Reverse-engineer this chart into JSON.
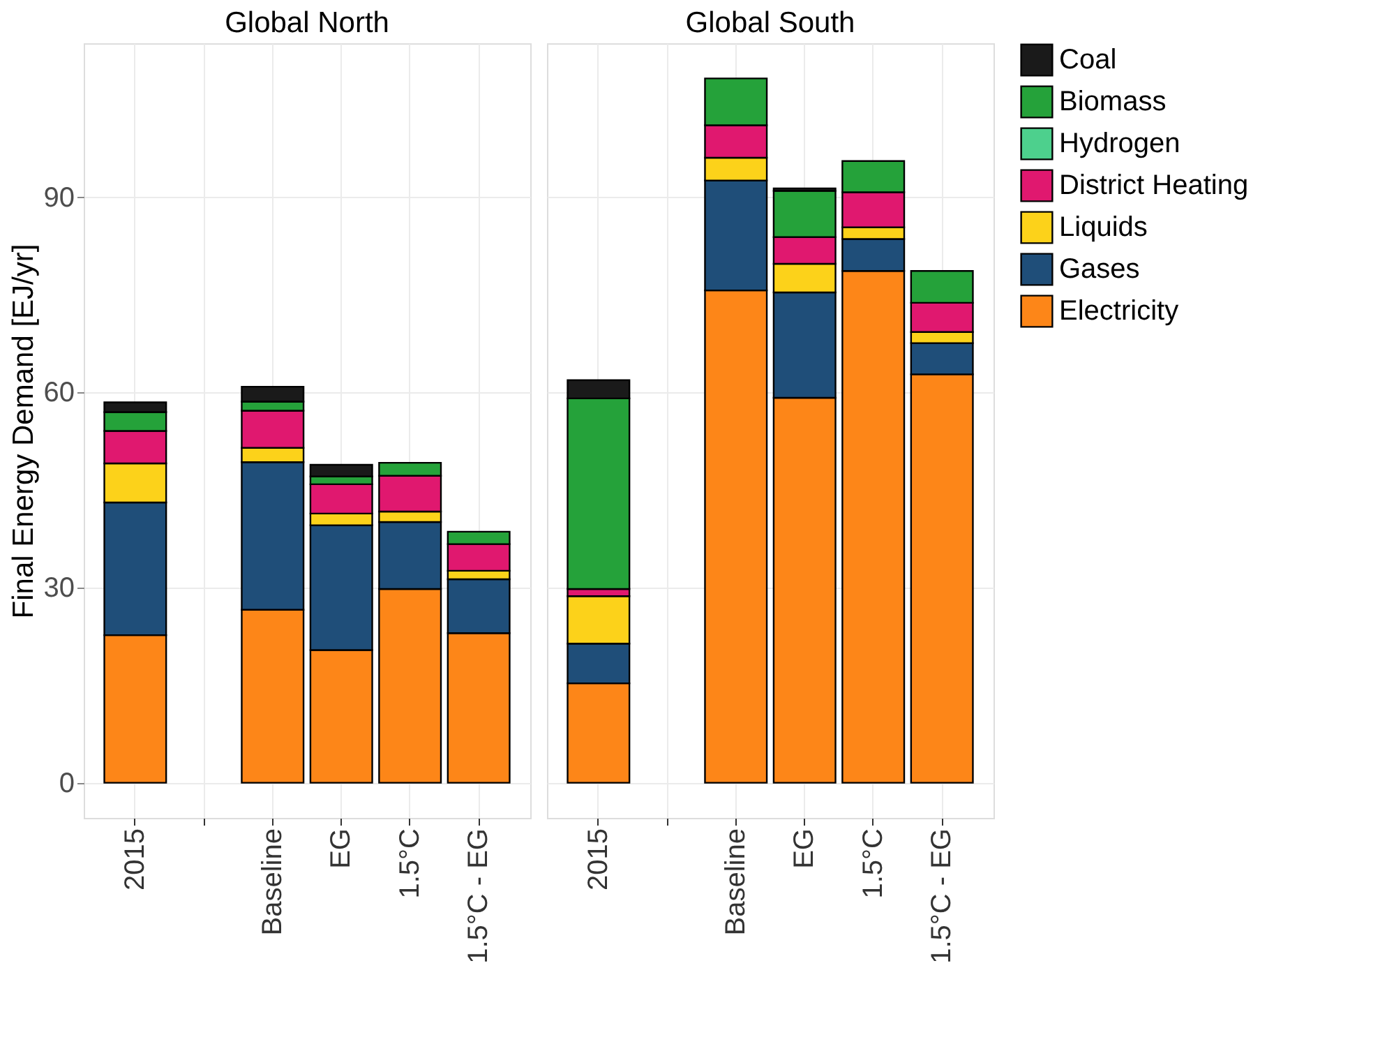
{
  "chart_data": [
    {
      "type": "bar",
      "title": "Global North",
      "ylabel": "Final Energy Demand [EJ/yr]",
      "categories": [
        "2015",
        null,
        "Baseline",
        "EG",
        "1.5°C",
        "1.5°C - EG"
      ],
      "stacked": true,
      "ylim": [
        -5.4,
        113.7
      ],
      "yticks": [
        0,
        30,
        60,
        90
      ],
      "grid": true,
      "legend": "right",
      "series": [
        {
          "name": "Electricity",
          "color": "#fd8618",
          "values": [
            22.7,
            null,
            26.6,
            20.4,
            29.8,
            23.0
          ]
        },
        {
          "name": "Gases",
          "color": "#1f4e79",
          "values": [
            20.4,
            null,
            22.7,
            19.2,
            10.3,
            8.3
          ]
        },
        {
          "name": "Liquids",
          "color": "#fcd21a",
          "values": [
            6.0,
            null,
            2.2,
            1.8,
            1.6,
            1.3
          ]
        },
        {
          "name": "District Heating",
          "color": "#e0186f",
          "values": [
            5.0,
            null,
            5.7,
            4.5,
            5.5,
            4.1
          ]
        },
        {
          "name": "Hydrogen",
          "color": "#4dd08d",
          "values": [
            null,
            null,
            null,
            null,
            null,
            null
          ]
        },
        {
          "name": "Biomass",
          "color": "#25a23a",
          "values": [
            2.9,
            null,
            1.4,
            1.2,
            2.0,
            1.9
          ]
        },
        {
          "name": "Coal",
          "color": "#1a1a1a",
          "values": [
            1.5,
            null,
            2.3,
            1.8,
            null,
            null
          ]
        }
      ]
    },
    {
      "type": "bar",
      "title": "Global South",
      "categories": [
        "2015",
        null,
        "Baseline",
        "EG",
        "1.5°C",
        "1.5°C - EG"
      ],
      "stacked": true,
      "ylim": [
        -5.4,
        113.7
      ],
      "yticks": [
        0,
        30,
        60,
        90
      ],
      "grid": true,
      "legend": "right",
      "tick_labels": "x",
      "series": [
        {
          "name": "Electricity",
          "color": "#fd8618",
          "values": [
            15.3,
            null,
            75.7,
            59.2,
            78.7,
            62.8
          ]
        },
        {
          "name": "Gases",
          "color": "#1f4e79",
          "values": [
            6.1,
            null,
            16.9,
            16.2,
            4.9,
            4.8
          ]
        },
        {
          "name": "Liquids",
          "color": "#fcd21a",
          "values": [
            7.3,
            null,
            3.5,
            4.4,
            1.8,
            1.7
          ]
        },
        {
          "name": "District Heating",
          "color": "#e0186f",
          "values": [
            1.1,
            null,
            5.0,
            4.1,
            5.4,
            4.5
          ]
        },
        {
          "name": "Biomass",
          "color": "#25a23a",
          "values": [
            29.3,
            null,
            7.2,
            7.1,
            4.8,
            4.9
          ]
        },
        {
          "name": "Coal",
          "color": "#1a1a1a",
          "values": [
            2.8,
            null,
            null,
            0.4,
            null,
            null
          ]
        }
      ]
    }
  ]
}
